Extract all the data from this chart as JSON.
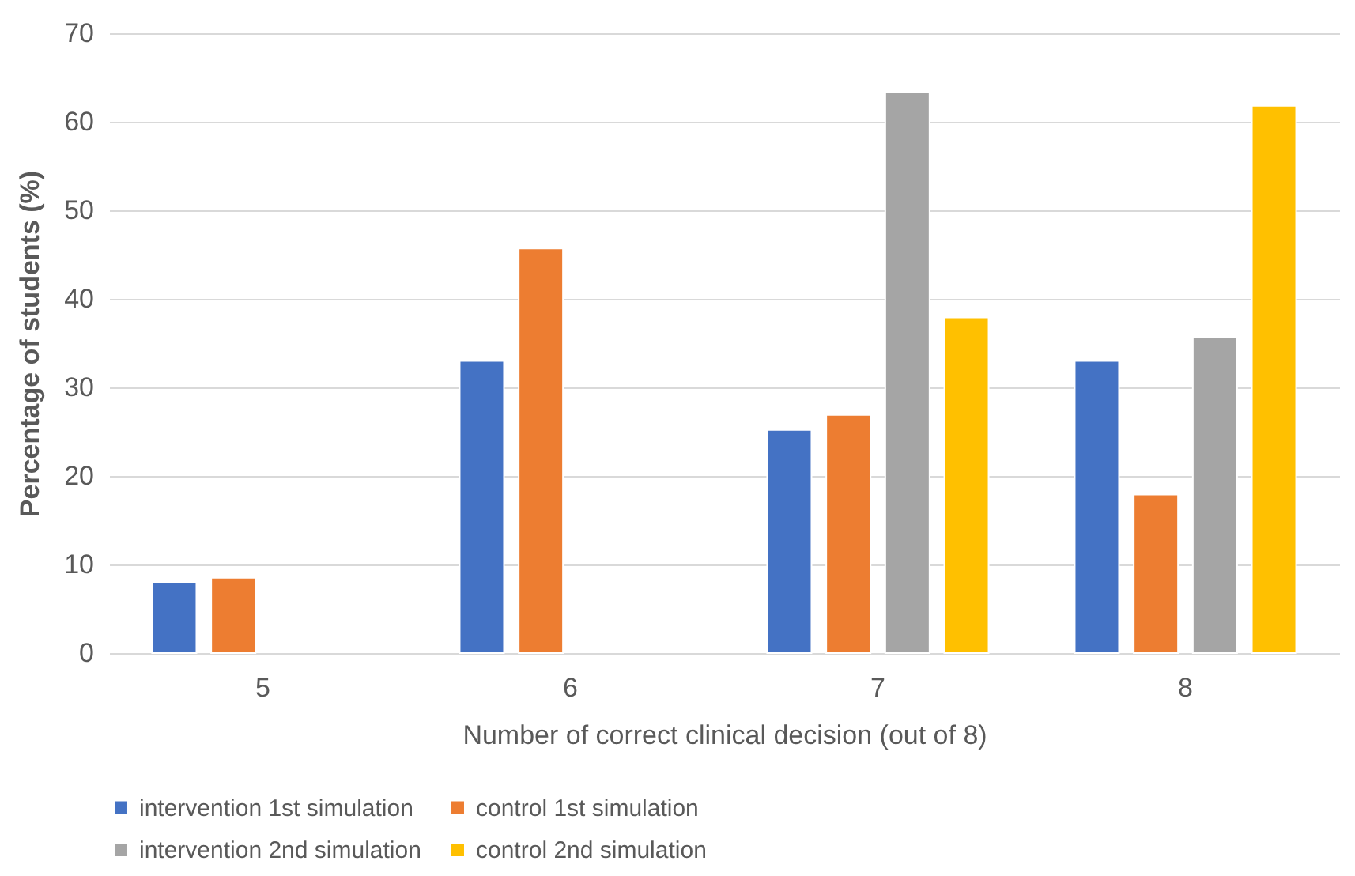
{
  "chart_data": {
    "type": "bar",
    "xlabel": "Number of correct clinical decision (out of 8)",
    "ylabel": "Percentage of students (%)",
    "categories": [
      "5",
      "6",
      "7",
      "8"
    ],
    "series": [
      {
        "name": "intervention 1st simulation",
        "color": "#4472c4",
        "values": [
          8.0,
          33.0,
          25.2,
          33.0
        ]
      },
      {
        "name": "control 1st simulation",
        "color": "#ed7d31",
        "values": [
          8.5,
          45.7,
          26.9,
          17.9
        ]
      },
      {
        "name": "intervention 2nd simulation",
        "color": "#a5a5a5",
        "values": [
          null,
          null,
          63.4,
          35.7
        ]
      },
      {
        "name": "control 2nd simulation",
        "color": "#ffc000",
        "values": [
          null,
          null,
          37.9,
          61.8
        ]
      }
    ],
    "ylim": [
      0,
      70
    ],
    "yticks": [
      0,
      10,
      20,
      30,
      40,
      50,
      60,
      70
    ],
    "grid": "y",
    "legend": "bottom"
  }
}
